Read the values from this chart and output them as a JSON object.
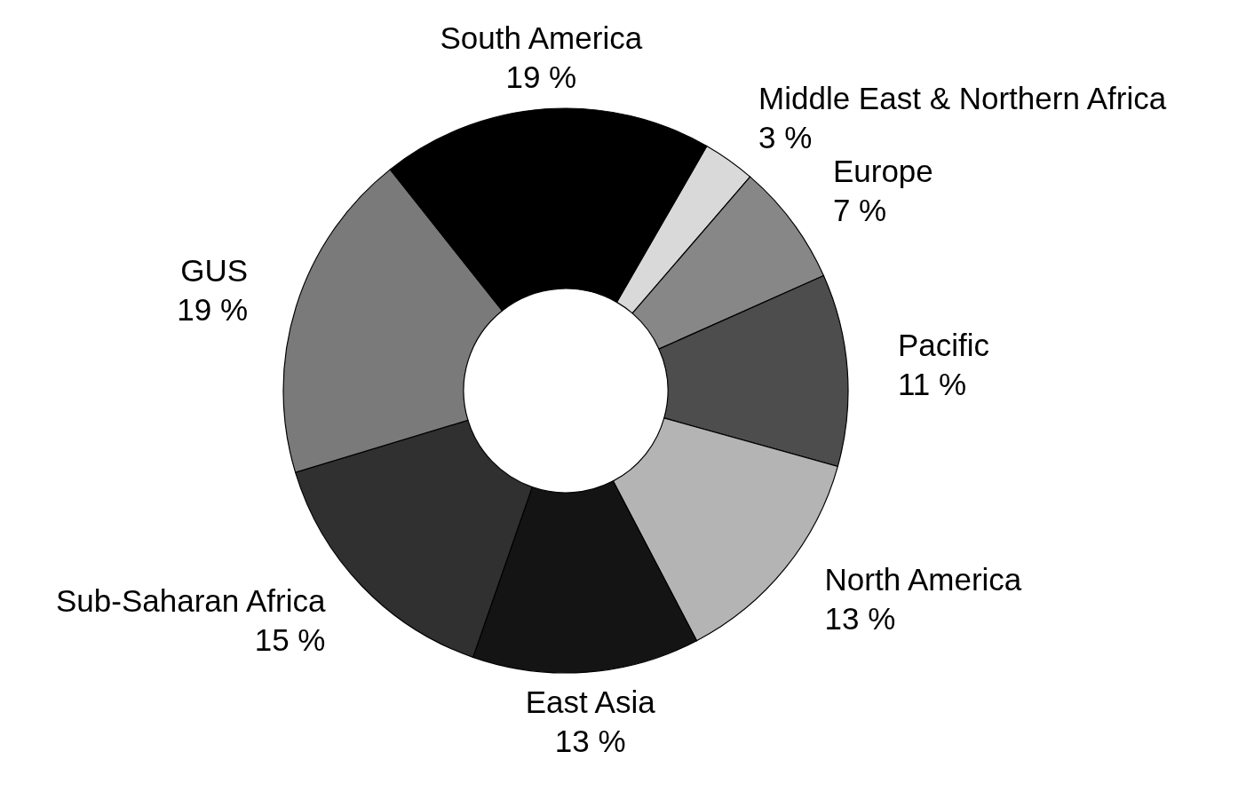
{
  "chart_data": {
    "type": "donut",
    "categories": [
      "Middle East & Northern Africa",
      "Europe",
      "Pacific",
      "North America",
      "East Asia",
      "Sub-Saharan Africa",
      "GUS",
      "South America"
    ],
    "values": [
      3,
      7,
      11,
      13,
      13,
      15,
      19,
      19
    ],
    "value_labels": [
      "3 %",
      "7 %",
      "11 %",
      "13 %",
      "13 %",
      "15 %",
      "19 %",
      "19 %"
    ],
    "colors": [
      "#d9d9d9",
      "#878787",
      "#4d4d4d",
      "#b4b4b4",
      "#141414",
      "#303030",
      "#7a7a7a",
      "#000000"
    ]
  }
}
